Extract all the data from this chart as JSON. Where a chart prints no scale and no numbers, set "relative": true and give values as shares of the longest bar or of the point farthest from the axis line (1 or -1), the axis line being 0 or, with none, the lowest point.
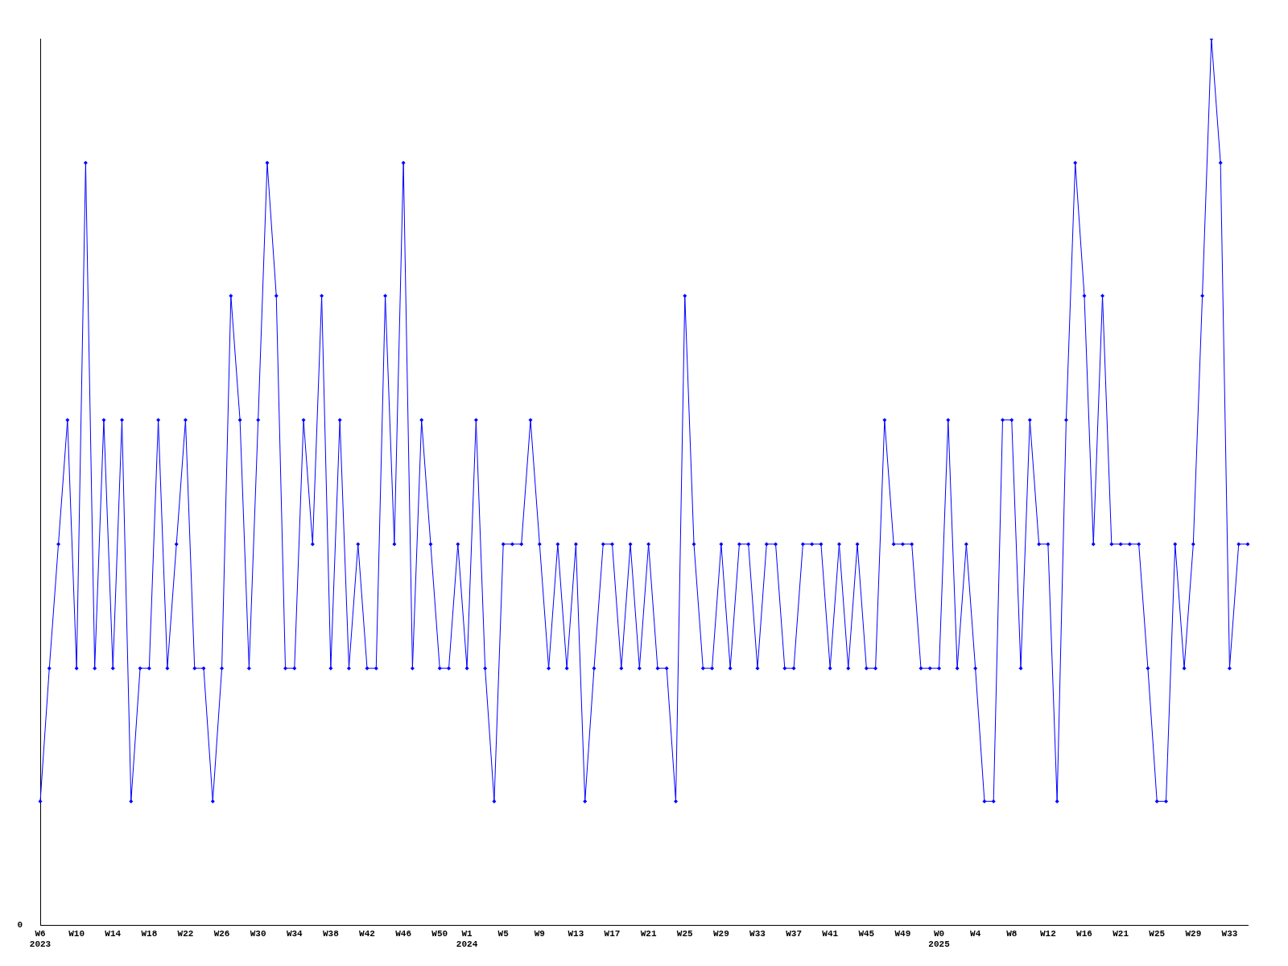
{
  "chart_data": {
    "type": "line",
    "relative": true,
    "marker": "diamond",
    "line_style": "solid",
    "grid": false,
    "legend": false,
    "annotations": [
      "0"
    ],
    "categories": [
      "W6\n2023",
      null,
      null,
      null,
      "W10",
      null,
      null,
      null,
      "W14",
      null,
      null,
      null,
      "W18",
      null,
      null,
      null,
      "W22",
      null,
      null,
      null,
      "W26",
      null,
      null,
      null,
      "W30",
      null,
      null,
      null,
      "W34",
      null,
      null,
      null,
      "W38",
      null,
      null,
      null,
      "W42",
      null,
      null,
      null,
      "W46",
      null,
      null,
      null,
      "W50",
      null,
      null,
      "W1\n2024",
      null,
      null,
      null,
      "W5",
      null,
      null,
      null,
      "W9",
      null,
      null,
      null,
      "W13",
      null,
      null,
      null,
      "W17",
      null,
      null,
      null,
      "W21",
      null,
      null,
      null,
      "W25",
      null,
      null,
      null,
      "W29",
      null,
      null,
      null,
      "W33",
      null,
      null,
      null,
      "W37",
      null,
      null,
      null,
      "W41",
      null,
      null,
      null,
      "W45",
      null,
      null,
      null,
      "W49",
      null,
      null,
      null,
      "W0\n2025",
      null,
      null,
      null,
      "W4",
      null,
      null,
      null,
      "W8",
      null,
      null,
      null,
      "W12",
      null,
      null,
      null,
      "W16",
      null,
      null,
      null,
      "W21",
      null,
      null,
      null,
      "W25",
      null,
      null,
      null,
      "W29",
      null,
      null,
      null,
      "W33",
      null,
      null
    ],
    "series": [
      {
        "color": "#0000ff",
        "values": [
          0.14,
          0.29,
          0.43,
          0.57,
          0.29,
          0.86,
          0.29,
          0.57,
          0.29,
          0.57,
          0.14,
          0.29,
          0.29,
          0.57,
          0.29,
          0.43,
          0.57,
          0.29,
          0.29,
          0.14,
          0.29,
          0.71,
          0.57,
          0.29,
          0.57,
          0.86,
          0.71,
          0.29,
          0.29,
          0.57,
          0.43,
          0.71,
          0.29,
          0.57,
          0.29,
          0.43,
          0.29,
          0.29,
          0.71,
          0.43,
          0.86,
          0.29,
          0.57,
          0.43,
          0.29,
          0.29,
          0.43,
          0.29,
          0.57,
          0.29,
          0.14,
          0.43,
          0.43,
          0.43,
          0.57,
          0.43,
          0.29,
          0.43,
          0.29,
          0.43,
          0.14,
          0.29,
          0.43,
          0.43,
          0.29,
          0.43,
          0.29,
          0.43,
          0.29,
          0.29,
          0.14,
          0.71,
          0.43,
          0.29,
          0.29,
          0.43,
          0.29,
          0.43,
          0.43,
          0.29,
          0.43,
          0.43,
          0.29,
          0.29,
          0.43,
          0.43,
          0.43,
          0.29,
          0.43,
          0.29,
          0.43,
          0.29,
          0.29,
          0.57,
          0.43,
          0.43,
          0.43,
          0.29,
          0.29,
          0.29,
          0.57,
          0.29,
          0.43,
          0.29,
          0.14,
          0.14,
          0.57,
          0.57,
          0.29,
          0.57,
          0.43,
          0.43,
          0.14,
          0.57,
          0.86,
          0.71,
          0.43,
          0.71,
          0.43,
          0.43,
          0.43,
          0.43,
          0.29,
          0.14,
          0.14,
          0.43,
          0.29,
          0.43,
          0.71,
          1,
          0.86,
          0.29,
          0.43,
          0.43
        ]
      }
    ]
  }
}
